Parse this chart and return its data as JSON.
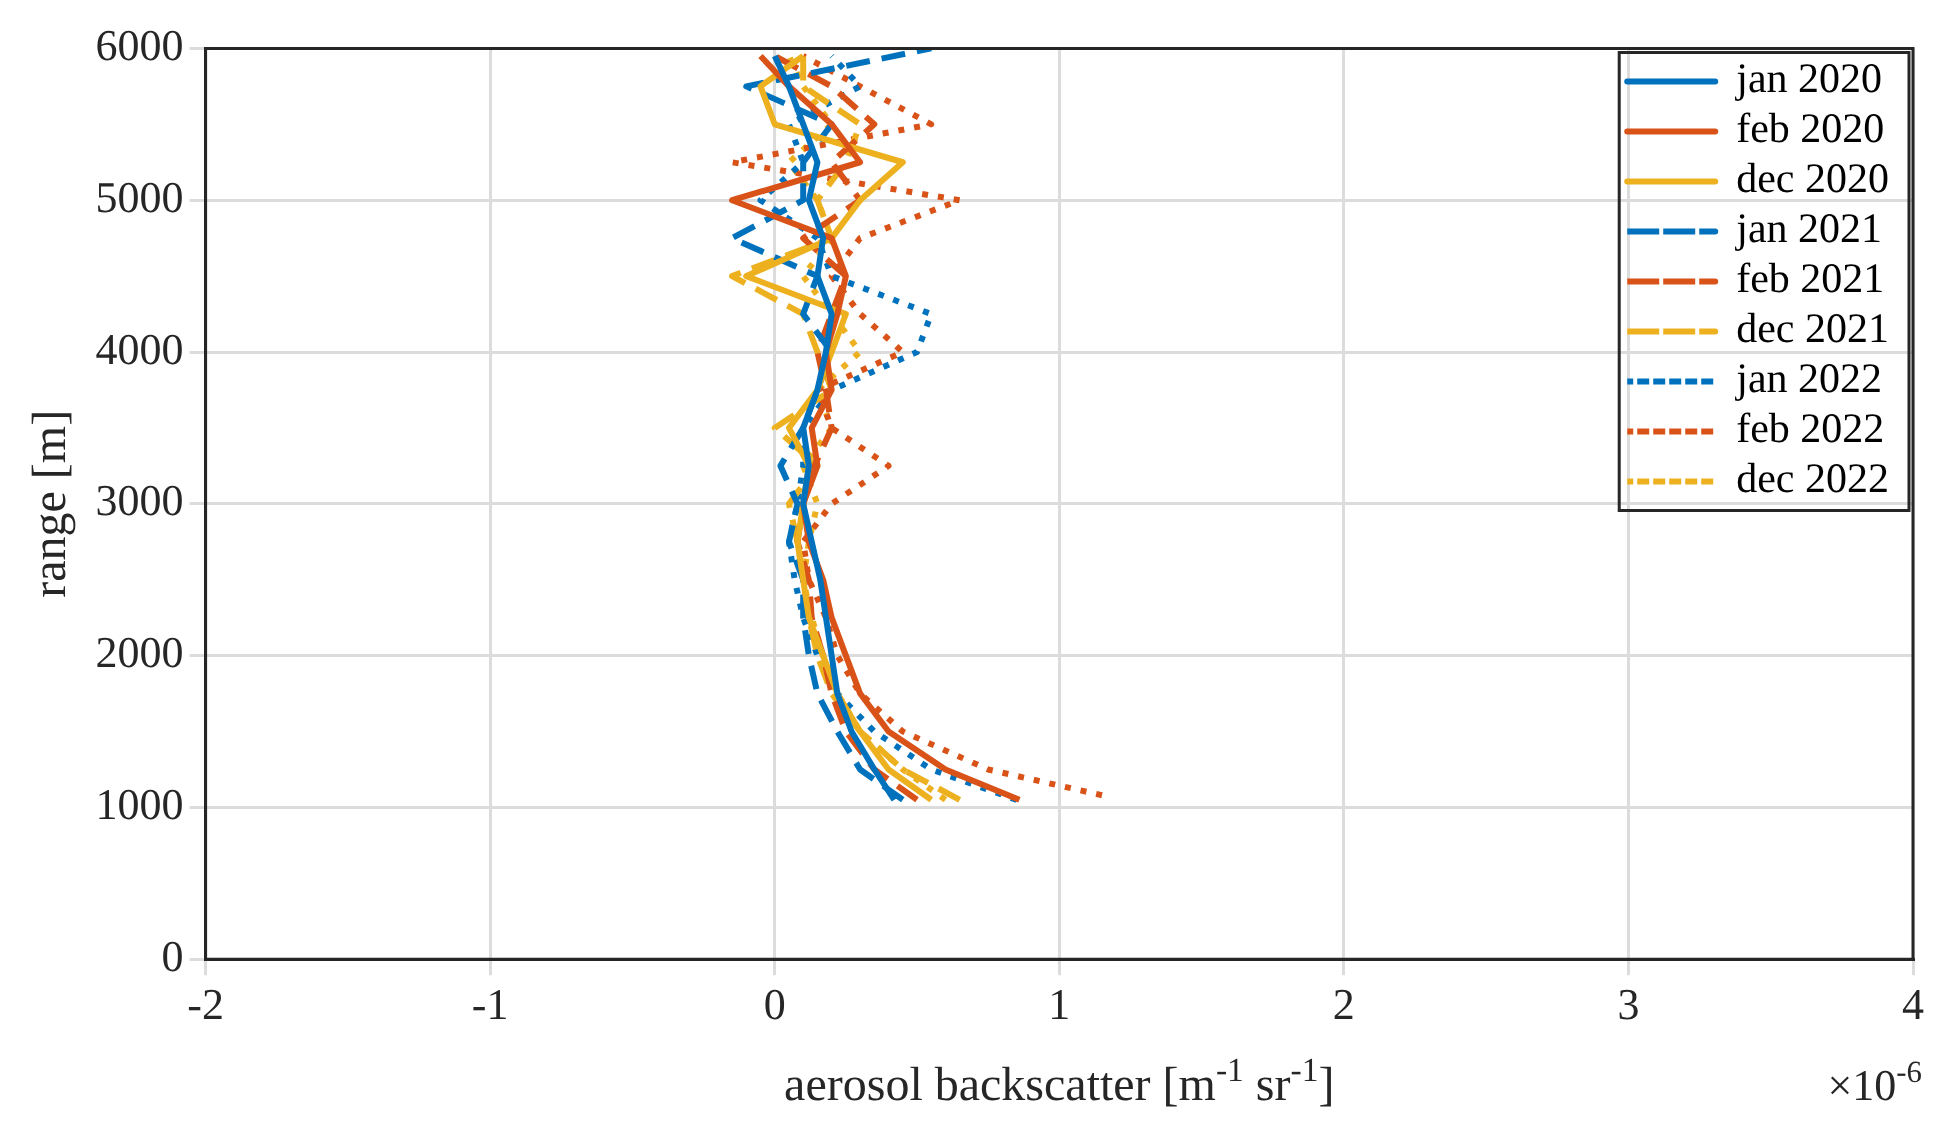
{
  "chart_data": {
    "type": "line",
    "xlabel": "aerosol backscatter [m$^{-1}$ sr$^{-1}$]",
    "ylabel": "range [m]",
    "annotations": [
      "×10$^{-6}$"
    ],
    "xlim": [
      -2,
      4
    ],
    "xticks": [
      -2,
      -1,
      0,
      1,
      2,
      3,
      4
    ],
    "ylim": [
      0,
      6000
    ],
    "yticks": [
      0,
      1000,
      2000,
      3000,
      4000,
      5000,
      6000
    ],
    "grid": true,
    "legend": "top right",
    "marker": "none",
    "series": [
      {
        "name": "jan 2020",
        "color": "#0072bd",
        "line_style": "solid",
        "x": [
          0.42,
          0.35,
          0.27,
          0.22,
          0.2,
          0.18,
          0.16,
          0.13,
          0.1,
          0.12,
          0.1,
          0.15,
          0.18,
          0.2,
          0.15,
          0.17,
          0.12,
          0.15,
          0.1,
          0.05,
          0.0
        ],
        "values": [
          1050,
          1250,
          1500,
          1750,
          2000,
          2250,
          2500,
          2750,
          3000,
          3250,
          3500,
          3750,
          4000,
          4250,
          4500,
          4750,
          5000,
          5250,
          5500,
          5750,
          5950
        ]
      },
      {
        "name": "feb 2020",
        "color": "#d95319",
        "line_style": "solid",
        "x": [
          0.86,
          0.6,
          0.4,
          0.3,
          0.25,
          0.2,
          0.17,
          0.12,
          0.1,
          0.15,
          0.13,
          0.2,
          0.18,
          0.22,
          0.25,
          0.2,
          -0.15,
          0.3,
          0.2,
          0.05,
          -0.05
        ],
        "values": [
          1050,
          1250,
          1500,
          1750,
          2000,
          2250,
          2500,
          2750,
          3000,
          3250,
          3500,
          3750,
          4000,
          4250,
          4500,
          4750,
          5000,
          5250,
          5500,
          5750,
          5950
        ]
      },
      {
        "name": "dec 2020",
        "color": "#edb120",
        "line_style": "solid",
        "x": [
          0.55,
          0.4,
          0.3,
          0.22,
          0.17,
          0.12,
          0.1,
          0.08,
          0.1,
          0.12,
          0.05,
          0.15,
          0.2,
          0.25,
          -0.1,
          0.2,
          0.3,
          0.45,
          0.0,
          -0.05,
          0.1
        ],
        "values": [
          1050,
          1250,
          1500,
          1750,
          2000,
          2250,
          2500,
          2750,
          3000,
          3250,
          3500,
          3750,
          4000,
          4250,
          4500,
          4750,
          5000,
          5250,
          5500,
          5750,
          5950
        ]
      },
      {
        "name": "jan 2021",
        "color": "#0072bd",
        "line_style": "dashed",
        "x": [
          0.45,
          0.3,
          0.22,
          0.15,
          0.12,
          0.1,
          0.1,
          0.05,
          0.08,
          0.02,
          0.1,
          0.15,
          0.2,
          0.1,
          0.15,
          -0.15,
          0.1,
          0.1,
          0.2,
          -0.1,
          0.55
        ],
        "values": [
          1050,
          1250,
          1500,
          1750,
          2000,
          2250,
          2500,
          2750,
          3000,
          3250,
          3500,
          3750,
          4000,
          4250,
          4500,
          4750,
          5000,
          5250,
          5500,
          5750,
          6000
        ]
      },
      {
        "name": "feb 2021",
        "color": "#d95319",
        "line_style": "dashed",
        "x": [
          0.5,
          0.35,
          0.25,
          0.2,
          0.17,
          0.13,
          0.12,
          0.08,
          0.1,
          0.14,
          0.2,
          0.18,
          0.15,
          0.2,
          0.25,
          0.1,
          0.3,
          0.2,
          0.35,
          0.2,
          0.0
        ],
        "values": [
          1050,
          1250,
          1500,
          1750,
          2000,
          2250,
          2500,
          2750,
          3000,
          3250,
          3500,
          3750,
          4000,
          4250,
          4500,
          4750,
          5000,
          5250,
          5500,
          5750,
          5950
        ]
      },
      {
        "name": "dec 2021",
        "color": "#edb120",
        "line_style": "dashed",
        "x": [
          0.65,
          0.45,
          0.3,
          0.2,
          0.15,
          0.12,
          0.1,
          0.08,
          0.05,
          0.15,
          0.0,
          0.2,
          0.15,
          0.1,
          -0.15,
          0.2,
          0.15,
          0.25,
          0.3,
          0.1,
          0.1
        ],
        "values": [
          1050,
          1250,
          1500,
          1750,
          2000,
          2250,
          2500,
          2750,
          3000,
          3250,
          3500,
          3750,
          4000,
          4250,
          4500,
          4750,
          5000,
          5250,
          5500,
          5750,
          5950
        ]
      },
      {
        "name": "jan 2022",
        "color": "#0072bd",
        "line_style": "dotted",
        "x": [
          0.85,
          0.55,
          0.35,
          0.22,
          0.15,
          0.1,
          0.07,
          0.05,
          0.08,
          0.1,
          0.1,
          0.2,
          0.5,
          0.55,
          0.2,
          0.15,
          -0.05,
          0.1,
          0.05,
          0.3,
          0.2
        ],
        "values": [
          1050,
          1250,
          1500,
          1750,
          2000,
          2250,
          2500,
          2750,
          3000,
          3250,
          3500,
          3750,
          4000,
          4250,
          4500,
          4750,
          5000,
          5250,
          5500,
          5750,
          5950
        ]
      },
      {
        "name": "feb 2022",
        "color": "#d95319",
        "line_style": "dotted",
        "x": [
          1.15,
          0.75,
          0.45,
          0.3,
          0.22,
          0.18,
          0.12,
          0.1,
          0.2,
          0.4,
          0.2,
          0.15,
          0.45,
          0.3,
          0.2,
          0.3,
          0.65,
          -0.15,
          0.55,
          0.3,
          0.1
        ],
        "values": [
          1080,
          1250,
          1500,
          1750,
          2000,
          2250,
          2500,
          2750,
          3000,
          3250,
          3500,
          3750,
          4000,
          4250,
          4500,
          4750,
          5000,
          5250,
          5500,
          5750,
          5950
        ]
      },
      {
        "name": "dec 2022",
        "color": "#edb120",
        "line_style": "dotted",
        "x": [
          0.6,
          0.45,
          0.3,
          0.22,
          0.17,
          0.13,
          0.1,
          0.12,
          0.15,
          0.1,
          0.2,
          0.15,
          0.3,
          0.2,
          0.1,
          0.2,
          0.15,
          0.05,
          0.2,
          0.1,
          0.05
        ],
        "values": [
          1050,
          1250,
          1500,
          1750,
          2000,
          2250,
          2500,
          2750,
          3000,
          3250,
          3500,
          3750,
          4000,
          4250,
          4500,
          4750,
          5000,
          5250,
          5500,
          5750,
          5950
        ]
      }
    ]
  }
}
